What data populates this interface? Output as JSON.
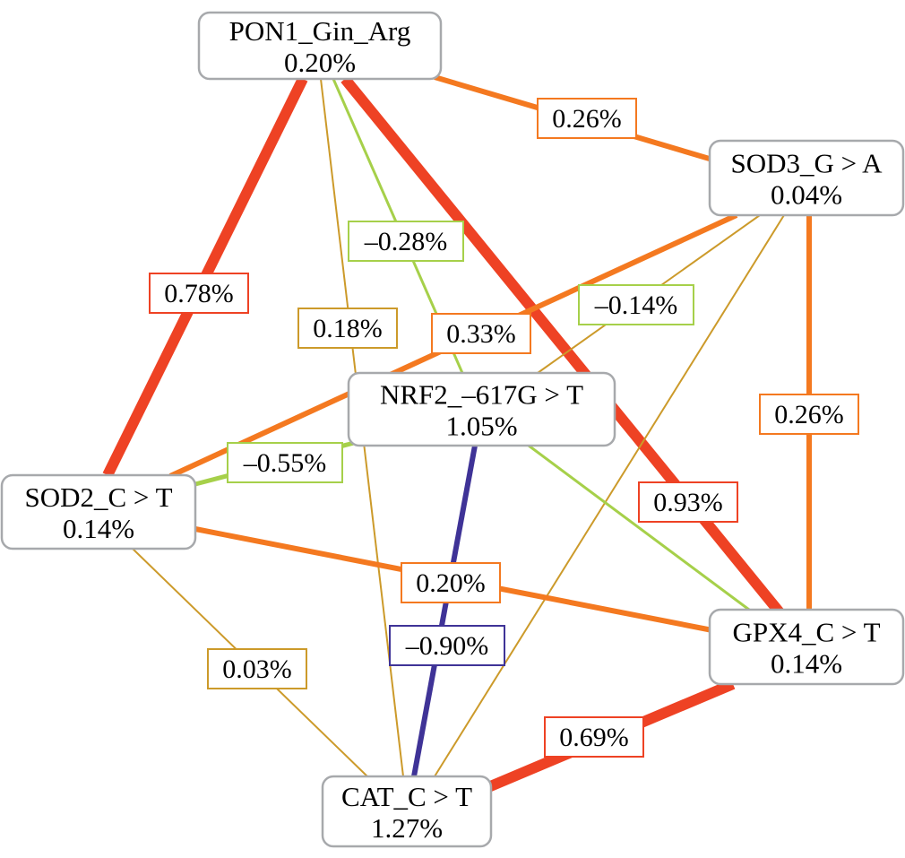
{
  "colors": {
    "strong_positive": "#ee4224",
    "positive": "#f47920",
    "weak_positive": "#cc9a2a",
    "negative_weak": "#a6d04a",
    "negative_strong": "#3f3397",
    "node_border": "#a7a9ac"
  },
  "nodes": [
    {
      "id": "PON1",
      "label": "PON1_Gin_Arg",
      "value": "0.20%"
    },
    {
      "id": "SOD3",
      "label": "SOD3_G > A",
      "value": "0.04%"
    },
    {
      "id": "NRF2",
      "label": "NRF2_–617G > T",
      "value": "1.05%"
    },
    {
      "id": "SOD2",
      "label": "SOD2_C > T",
      "value": "0.14%"
    },
    {
      "id": "GPX4",
      "label": "GPX4_C > T",
      "value": "0.14%"
    },
    {
      "id": "CAT",
      "label": "CAT_C > T",
      "value": "1.27%"
    }
  ],
  "edges": [
    {
      "from": "PON1",
      "to": "SOD3",
      "label": "0.26%",
      "color": "#f47920",
      "label_color": "#f47920"
    },
    {
      "from": "PON1",
      "to": "SOD2",
      "label": "0.78%",
      "color": "#ee4224",
      "label_color": "#ee4224"
    },
    {
      "from": "PON1",
      "to": "GPX4",
      "label": "0.93%",
      "color": "#ee4224",
      "label_color": "#ee4224"
    },
    {
      "from": "PON1",
      "to": "NRF2",
      "label": "–0.28%",
      "color": "#a6d04a",
      "label_color": "#a6d04a"
    },
    {
      "from": "PON1",
      "to": "CAT",
      "label": "0.18%",
      "color": "#cc9a2a",
      "label_color": "#cc9a2a"
    },
    {
      "from": "SOD3",
      "to": "SOD2",
      "label": "0.33%",
      "color": "#f47920",
      "label_color": "#f47920"
    },
    {
      "from": "SOD3",
      "to": "NRF2",
      "label": "–0.14%",
      "color": "#cc9a2a",
      "label_color": "#a6d04a"
    },
    {
      "from": "SOD3",
      "to": "CAT",
      "label": "",
      "color": "#cc9a2a",
      "label_color": ""
    },
    {
      "from": "SOD3",
      "to": "GPX4",
      "label": "0.26%",
      "color": "#f47920",
      "label_color": "#f47920"
    },
    {
      "from": "NRF2",
      "to": "SOD2",
      "label": "–0.55%",
      "color": "#a6d04a",
      "label_color": "#a6d04a"
    },
    {
      "from": "NRF2",
      "to": "GPX4",
      "label": "",
      "color": "#a6d04a",
      "label_color": ""
    },
    {
      "from": "NRF2",
      "to": "CAT",
      "label": "–0.90%",
      "color": "#3f3397",
      "label_color": "#3f3397"
    },
    {
      "from": "SOD2",
      "to": "GPX4",
      "label": "0.20%",
      "color": "#f47920",
      "label_color": "#f47920"
    },
    {
      "from": "SOD2",
      "to": "CAT",
      "label": "0.03%",
      "color": "#cc9a2a",
      "label_color": "#cc9a2a"
    },
    {
      "from": "GPX4",
      "to": "CAT",
      "label": "0.69%",
      "color": "#ee4224",
      "label_color": "#ee4224"
    }
  ]
}
